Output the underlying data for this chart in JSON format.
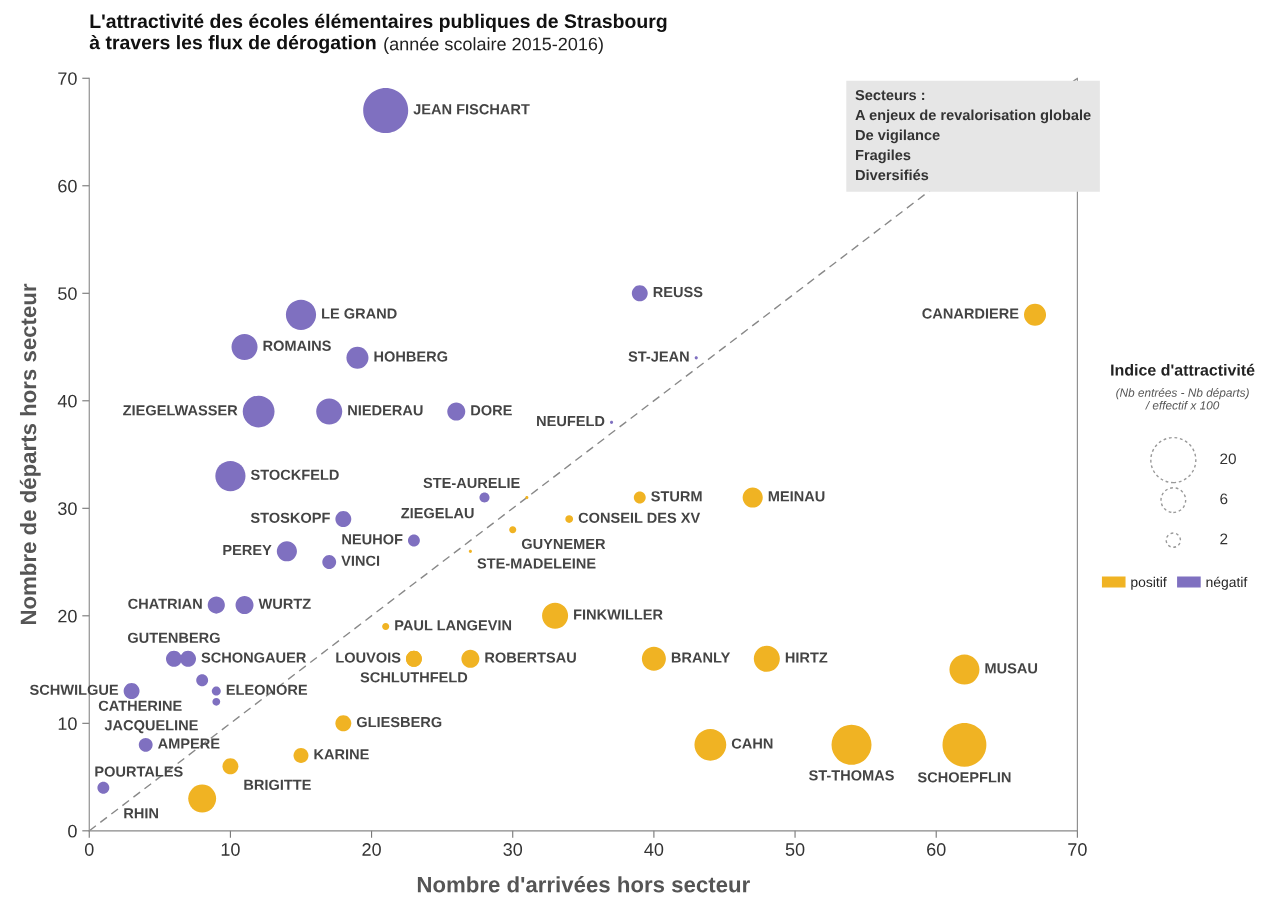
{
  "chart_data": {
    "type": "bubble",
    "title": "L'attractivité des écoles élémentaires publiques de Strasbourg\nà travers les flux de dérogation",
    "subtitle": "(année scolaire 2015-2016)",
    "xlabel": "Nombre d'arrivées hors secteur",
    "ylabel": "Nombre de départs hors secteur",
    "legend": "right",
    "annotations": [
      "Secteurs :",
      "A enjeux de revalorisation globale",
      "De vigilance",
      "Fragiles",
      "Diversifiés",
      "Indice d'attractivité",
      "(Nb entrées - Nb départs)\n/ effectif x 100"
    ],
    "size_legend": [
      20,
      6,
      2
    ],
    "xlim": [
      0,
      70
    ],
    "ylim": [
      0,
      70
    ],
    "xticks": [
      0,
      10,
      20,
      30,
      40,
      50,
      60,
      70
    ],
    "yticks": [
      0,
      10,
      20,
      30,
      40,
      50,
      60,
      70
    ],
    "series": [
      {
        "type": "line",
        "color": "#888888",
        "line_style": "dashed",
        "x": [
          0,
          70
        ],
        "values": [
          0,
          70
        ]
      },
      {
        "name": "positif",
        "color": "#f0b323",
        "value_labels": [
          "BRIGITTE",
          "KARINE",
          "PAUL LANGEVIN",
          "GUYNEMER",
          "MEINAU",
          "CANARDIERE",
          "STE-AURELIE",
          "STE-MADELEINE",
          "STURM",
          "HIRTZ",
          "LOUVOIS",
          "POURTALES",
          "GLIESBERG",
          "SCHLUTHFELD",
          "ROBERTSAU",
          "FINKWILLER",
          "BRANLY",
          "MUSAU",
          "CAHN",
          "ST-THOMAS",
          "SCHOEPFLIN",
          "CONSEIL DES XV"
        ],
        "x": [
          10,
          15,
          21,
          30,
          47,
          67,
          31,
          27,
          39,
          48,
          23,
          8,
          18,
          23,
          27,
          33,
          40,
          62,
          44,
          54,
          62,
          34
        ],
        "values": [
          6,
          7,
          19,
          28,
          31,
          48,
          31,
          26,
          31,
          16,
          16,
          3,
          10,
          16,
          16,
          20,
          16,
          15,
          8,
          8,
          8,
          29
        ],
        "sizes": [
          2.5,
          2.2,
          0.5,
          0.5,
          4,
          4.8,
          0.1,
          0.1,
          1.4,
          6.7,
          2.5,
          7.7,
          2.5,
          2.5,
          3.2,
          6.7,
          5.7,
          8.9,
          10,
          15.8,
          19,
          0.6
        ]
      },
      {
        "name": "négatif",
        "color": "#7f70c0",
        "value_labels": [
          "JEAN FISCHART",
          "ZIEGELWASSER",
          "PEREY",
          "VINCI",
          "WURTZ",
          "SCHONGAUER",
          "CATHERINE",
          "ELEONORE",
          "JACQUELINE",
          "RHIN",
          "ROMAINS",
          "HOHBERG",
          "STOSKOPF",
          "CHATRIAN",
          "GUTENBERG",
          "SCHWILGUE",
          "AMPERE",
          "LE GRAND",
          "DORE",
          "ZIEGELAU",
          "REUSS",
          "NIEDERAU",
          "STOCKFELD",
          "NEUHOF",
          "NEUFELD",
          "ST-JEAN"
        ],
        "x": [
          21,
          12,
          14,
          17,
          11,
          7,
          8,
          9,
          9,
          1,
          11,
          19,
          18,
          9,
          6,
          3,
          4,
          15,
          26,
          28,
          39,
          17,
          10,
          23,
          37,
          43
        ],
        "values": [
          67,
          39,
          26,
          25,
          21,
          16,
          14,
          13,
          12,
          4,
          45,
          44,
          29,
          21,
          16,
          13,
          8,
          48,
          39,
          31,
          50,
          39,
          33,
          27,
          38,
          44
        ],
        "sizes": [
          20,
          10,
          4,
          1.9,
          3.2,
          2.5,
          1.4,
          0.8,
          0.6,
          1.4,
          6.7,
          4.8,
          2.5,
          2.9,
          2.5,
          2.5,
          1.9,
          9,
          3.2,
          1,
          2.5,
          6.7,
          9,
          1.4,
          0.1,
          0.1
        ]
      }
    ]
  }
}
